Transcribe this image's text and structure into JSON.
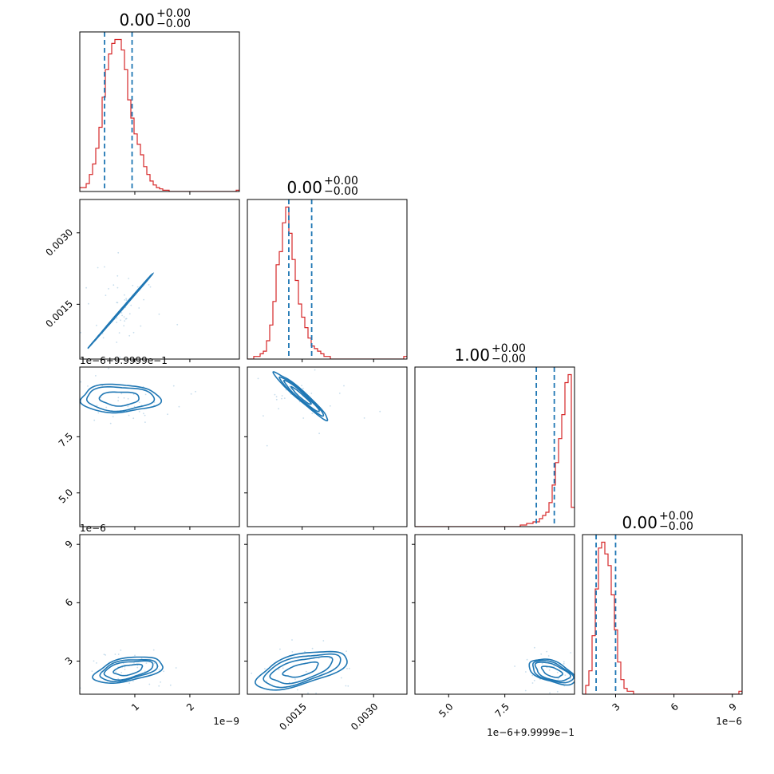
{
  "colors": {
    "hist": "#d62728",
    "contour": "#1f77b4",
    "quantile_line": "#1f77b4",
    "axis": "#000000"
  },
  "chart_data": {
    "type": "corner",
    "n_params": 4,
    "titles": [
      {
        "value": "0.00",
        "plus": "+0.00",
        "minus": "−0.00"
      },
      {
        "value": "0.00",
        "plus": "+0.00",
        "minus": "−0.00"
      },
      {
        "value": "1.00",
        "plus": "+0.00",
        "minus": "−0.00"
      },
      {
        "value": "0.00",
        "plus": "+0.00",
        "minus": "−0.00"
      }
    ],
    "ranges": [
      [
        0.0,
        2.9
      ],
      [
        0.00035,
        0.0037
      ],
      [
        3.5,
        10.6
      ],
      [
        1.3,
        9.5
      ]
    ],
    "offset_labels": {
      "x0": "1e−9",
      "x1": "",
      "x2": "1e−6+9.9999e−1",
      "x3": "1e−6",
      "y1": "",
      "y2": "1e−6+9.9999e−1",
      "y3": "1e−6"
    },
    "x_ticks": [
      [
        {
          "v": 1,
          "label": "1"
        },
        {
          "v": 2,
          "label": "2"
        }
      ],
      [
        {
          "v": 0.0015,
          "label": "0.0015"
        },
        {
          "v": 0.003,
          "label": "0.0030"
        }
      ],
      [
        {
          "v": 5.0,
          "label": "5.0"
        },
        {
          "v": 7.5,
          "label": "7.5"
        }
      ],
      [
        {
          "v": 3,
          "label": "3"
        },
        {
          "v": 6,
          "label": "6"
        },
        {
          "v": 9,
          "label": "9"
        }
      ]
    ],
    "y_ticks": [
      [],
      [
        {
          "v": 0.0015,
          "label": "0.0015"
        },
        {
          "v": 0.003,
          "label": "0.0030"
        }
      ],
      [
        {
          "v": 5.0,
          "label": "5.0"
        },
        {
          "v": 7.5,
          "label": "7.5"
        }
      ],
      [
        {
          "v": 3,
          "label": "3"
        },
        {
          "v": 6,
          "label": "6"
        },
        {
          "v": 9,
          "label": "9"
        }
      ]
    ],
    "quantiles": [
      [
        0.45,
        0.95
      ],
      [
        0.00122,
        0.0017
      ],
      [
        8.9,
        9.7
      ],
      [
        2.0,
        3.0
      ]
    ],
    "histograms": [
      {
        "bin_start": 0.0,
        "bin_width": 0.058,
        "counts": [
          3,
          3,
          6,
          13,
          21,
          33,
          49,
          72,
          93,
          105,
          113,
          116,
          116,
          108,
          93,
          70,
          56,
          44,
          36,
          28,
          19,
          13,
          8,
          5,
          3,
          2,
          1,
          1,
          0,
          0,
          0,
          0,
          0,
          0,
          0,
          0,
          0,
          0,
          0,
          0,
          0,
          0,
          0,
          0,
          0,
          0,
          0,
          0,
          0,
          1
        ]
      },
      {
        "bin_start": 0.00035,
        "bin_width": 6.7e-05,
        "counts": [
          0,
          0,
          1,
          1,
          2,
          3,
          7,
          13,
          22,
          36,
          41,
          52,
          58,
          48,
          38,
          30,
          21,
          16,
          12,
          8,
          5,
          4,
          3,
          2,
          1,
          1,
          0,
          0,
          0,
          0,
          0,
          0,
          0,
          0,
          0,
          0,
          0,
          0,
          0,
          0,
          0,
          0,
          0,
          0,
          0,
          0,
          0,
          0,
          0,
          1
        ]
      },
      {
        "bin_start": 3.5,
        "bin_width": 0.142,
        "counts": [
          0,
          0,
          0,
          0,
          0,
          0,
          0,
          0,
          0,
          0,
          0,
          0,
          0,
          0,
          0,
          0,
          0,
          0,
          0,
          0,
          0,
          0,
          0,
          0,
          0,
          0,
          0,
          0,
          0,
          0,
          0,
          0,
          0,
          1,
          1,
          2,
          2,
          3,
          3,
          5,
          7,
          9,
          15,
          26,
          40,
          55,
          70,
          90,
          95,
          12
        ]
      },
      {
        "bin_start": 1.3,
        "bin_width": 0.164,
        "counts": [
          0,
          3,
          8,
          20,
          36,
          50,
          52,
          48,
          44,
          34,
          22,
          11,
          5,
          2,
          1,
          1,
          0,
          0,
          0,
          0,
          0,
          0,
          0,
          0,
          0,
          0,
          0,
          0,
          0,
          0,
          0,
          0,
          0,
          0,
          0,
          0,
          0,
          0,
          0,
          0,
          0,
          0,
          0,
          0,
          0,
          0,
          0,
          0,
          0,
          1
        ]
      }
    ],
    "contours": [
      {
        "row": 1,
        "col": 0,
        "center": [
          0.78,
          0.00142
        ],
        "a": [
          0.44,
          0.00058
        ],
        "b": [
          0.2,
          0.00028
        ],
        "scales": [
          0.46,
          0.78,
          1.0,
          1.2
        ],
        "dots": 55,
        "spread": [
          0.35,
          0.00055
        ]
      },
      {
        "row": 2,
        "col": 0,
        "center": [
          0.72,
          9.2
        ],
        "a": [
          0.72,
          0.0
        ],
        "b": [
          0.0,
          0.62
        ],
        "scales": [
          0.5,
          0.85,
          1.0
        ],
        "dots": 45,
        "spread": [
          0.55,
          0.6
        ]
      },
      {
        "row": 2,
        "col": 1,
        "center": [
          0.00148,
          9.32
        ],
        "a": [
          0.00046,
          -0.85
        ],
        "b": [
          4e-05,
          0.15
        ],
        "scales": [
          0.45,
          0.8,
          1.0,
          1.22
        ],
        "dots": 35,
        "spread": [
          0.0006,
          0.8
        ]
      },
      {
        "row": 3,
        "col": 0,
        "center": [
          0.88,
          2.55
        ],
        "a": [
          0.52,
          0.25
        ],
        "b": [
          0.0,
          0.5
        ],
        "scales": [
          0.5,
          0.85,
          1.0,
          1.2
        ],
        "dots": 50,
        "spread": [
          0.45,
          0.6
        ]
      },
      {
        "row": 3,
        "col": 1,
        "center": [
          0.00148,
          2.55
        ],
        "a": [
          0.0008,
          0.58
        ],
        "b": [
          -0.00012,
          0.6
        ],
        "scales": [
          0.45,
          0.8,
          1.0,
          1.18
        ],
        "dots": 45,
        "spread": [
          0.0007,
          0.8
        ]
      },
      {
        "row": 3,
        "col": 2,
        "center": [
          9.6,
          2.45
        ],
        "a": [
          0.9,
          -0.3
        ],
        "b": [
          0.0,
          0.48
        ],
        "scales": [
          0.5,
          0.85,
          1.0,
          1.15
        ],
        "dots": 40,
        "spread": [
          0.7,
          0.6
        ]
      }
    ]
  }
}
